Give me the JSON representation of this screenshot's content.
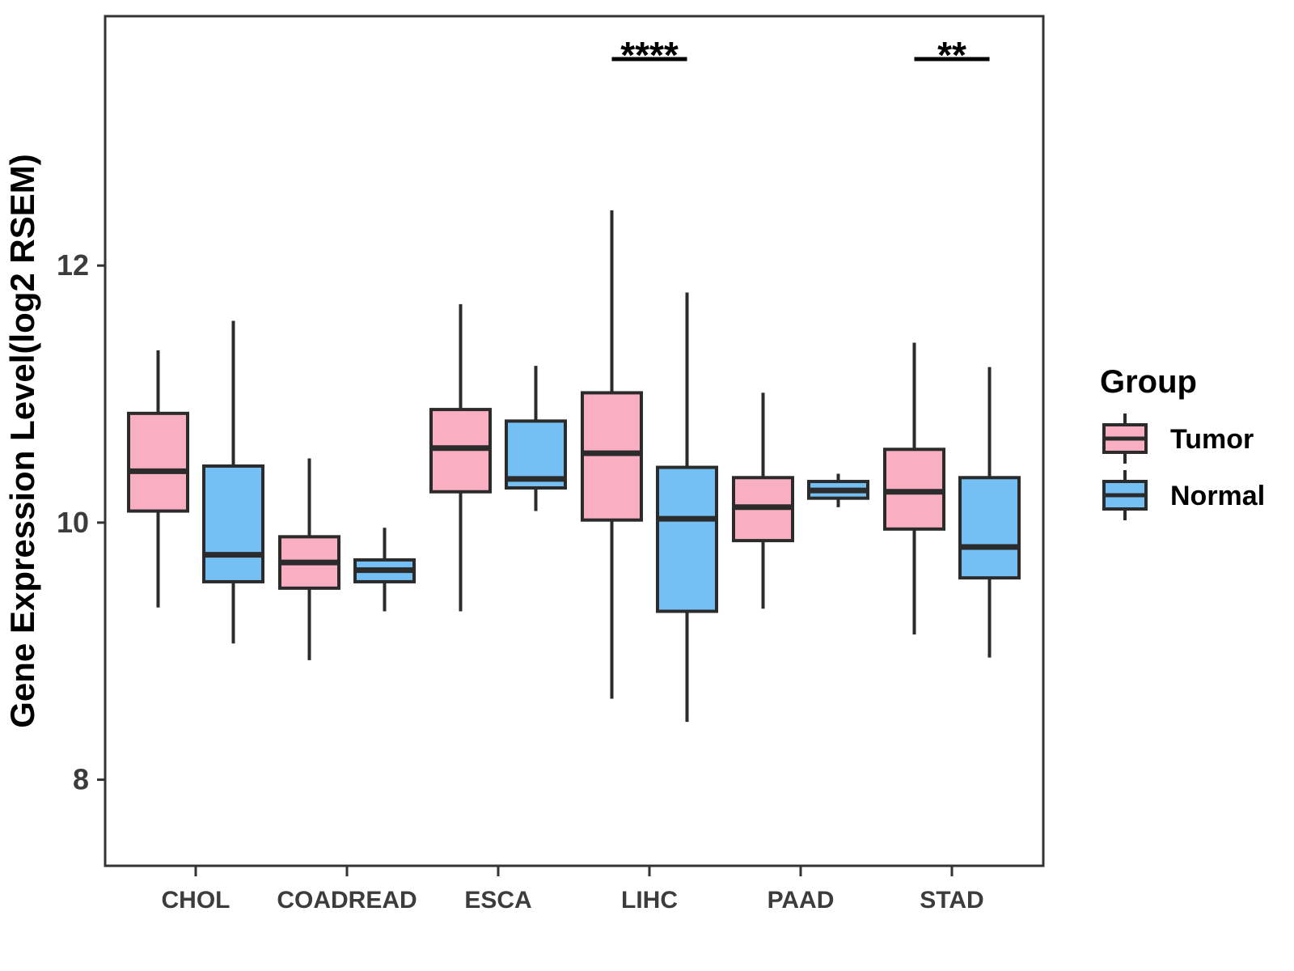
{
  "chart_data": {
    "type": "boxplot",
    "title": "",
    "xlabel": "",
    "ylabel": "Gene Expression Level(log2 RSEM)",
    "yticks": [
      8,
      10,
      12
    ],
    "ylim": [
      7.33,
      13.94
    ],
    "grid": false,
    "legend_position": "right",
    "categories": [
      "CHOL",
      "COADREAD",
      "ESCA",
      "LIHC",
      "PAAD",
      "STAD"
    ],
    "series": [
      {
        "name": "Tumor",
        "color": "#F9AFC1",
        "boxes": [
          {
            "category": "CHOL",
            "low": 9.34,
            "q1": 10.09,
            "median": 10.4,
            "q3": 10.85,
            "high": 11.34
          },
          {
            "category": "COADREAD",
            "low": 8.93,
            "q1": 9.49,
            "median": 9.69,
            "q3": 9.89,
            "high": 10.5
          },
          {
            "category": "ESCA",
            "low": 9.31,
            "q1": 10.24,
            "median": 10.58,
            "q3": 10.88,
            "high": 11.7
          },
          {
            "category": "LIHC",
            "low": 8.63,
            "q1": 10.02,
            "median": 10.54,
            "q3": 11.01,
            "high": 12.43
          },
          {
            "category": "PAAD",
            "low": 9.33,
            "q1": 9.86,
            "median": 10.12,
            "q3": 10.35,
            "high": 11.01
          },
          {
            "category": "STAD",
            "low": 9.13,
            "q1": 9.95,
            "median": 10.24,
            "q3": 10.57,
            "high": 11.4
          }
        ]
      },
      {
        "name": "Normal",
        "color": "#74BFF4",
        "boxes": [
          {
            "category": "CHOL",
            "low": 9.06,
            "q1": 9.54,
            "median": 9.75,
            "q3": 10.44,
            "high": 11.57
          },
          {
            "category": "COADREAD",
            "low": 9.31,
            "q1": 9.54,
            "median": 9.63,
            "q3": 9.71,
            "high": 9.96
          },
          {
            "category": "ESCA",
            "low": 10.09,
            "q1": 10.27,
            "median": 10.34,
            "q3": 10.79,
            "high": 11.22
          },
          {
            "category": "LIHC",
            "low": 8.45,
            "q1": 9.31,
            "median": 10.03,
            "q3": 10.43,
            "high": 11.79
          },
          {
            "category": "PAAD",
            "low": 10.12,
            "q1": 10.19,
            "median": 10.25,
            "q3": 10.32,
            "high": 10.38
          },
          {
            "category": "STAD",
            "low": 8.95,
            "q1": 9.57,
            "median": 9.81,
            "q3": 10.35,
            "high": 11.21
          }
        ]
      }
    ],
    "significance": [
      {
        "category": "LIHC",
        "label": "****"
      },
      {
        "category": "STAD",
        "label": "**"
      }
    ],
    "legend": {
      "title": "Group",
      "entries": [
        {
          "label": "Tumor",
          "color": "#F9AFC1"
        },
        {
          "label": "Normal",
          "color": "#74BFF4"
        }
      ]
    },
    "style_colors": {
      "box_border": "#2B2B2B",
      "axis_line": "#333333",
      "tick_text": "#3C3C3C",
      "title_text": "#000000"
    }
  }
}
